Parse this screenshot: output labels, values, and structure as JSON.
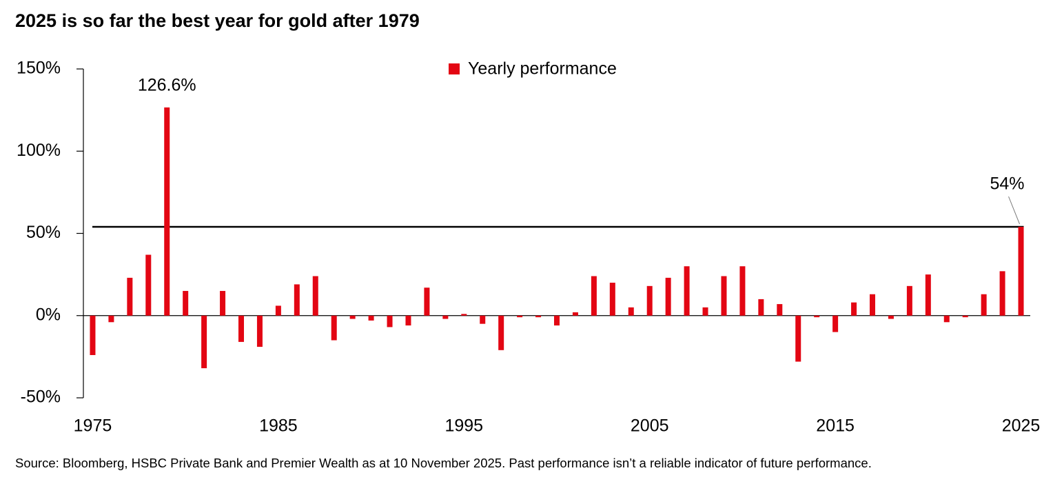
{
  "chart_data": {
    "type": "bar",
    "title": "2025 is so far the best year for gold after 1979",
    "source": "Source: Bloomberg, HSBC Private Bank and Premier Wealth as at 10 November 2025. Past performance isn’t a reliable indicator of future performance.",
    "x": [
      1975,
      1976,
      1977,
      1978,
      1979,
      1980,
      1981,
      1982,
      1983,
      1984,
      1985,
      1986,
      1987,
      1988,
      1989,
      1990,
      1991,
      1992,
      1993,
      1994,
      1995,
      1996,
      1997,
      1998,
      1999,
      2000,
      2001,
      2002,
      2003,
      2004,
      2005,
      2006,
      2007,
      2008,
      2009,
      2010,
      2011,
      2012,
      2013,
      2014,
      2015,
      2016,
      2017,
      2018,
      2019,
      2020,
      2021,
      2022,
      2023,
      2024,
      2025
    ],
    "series": [
      {
        "name": "Yearly performance",
        "color": "#e30613",
        "values": [
          -24,
          -4,
          23,
          37,
          126.6,
          15,
          -32,
          15,
          -16,
          -19,
          6,
          19,
          24,
          -15,
          -2,
          -3,
          -7,
          -6,
          17,
          -2,
          1,
          -5,
          -21,
          -1,
          -1,
          -6,
          2,
          24,
          20,
          5,
          18,
          23,
          30,
          5,
          24,
          30,
          10,
          7,
          -28,
          -1,
          -10,
          8,
          13,
          -2,
          18,
          25,
          -4,
          -1,
          13,
          27,
          54
        ],
        "value_labels": [
          null,
          null,
          null,
          null,
          "126.6%",
          null,
          null,
          null,
          null,
          null,
          null,
          null,
          null,
          null,
          null,
          null,
          null,
          null,
          null,
          null,
          null,
          null,
          null,
          null,
          null,
          null,
          null,
          null,
          null,
          null,
          null,
          null,
          null,
          null,
          null,
          null,
          null,
          null,
          null,
          null,
          null,
          null,
          null,
          null,
          null,
          null,
          null,
          null,
          null,
          null,
          "54%"
        ]
      }
    ],
    "xlim": [
      1974.5,
      2025.5
    ],
    "xticks": [
      1975,
      1985,
      1995,
      2005,
      2015,
      2025
    ],
    "ylim": [
      -50,
      150
    ],
    "yticks": [
      {
        "value": -50,
        "label": "-50%"
      },
      {
        "value": 0,
        "label": "0%"
      },
      {
        "value": 50,
        "label": "50%"
      },
      {
        "value": 100,
        "label": "100%"
      },
      {
        "value": 150,
        "label": "150%"
      }
    ],
    "legend": "top"
  }
}
